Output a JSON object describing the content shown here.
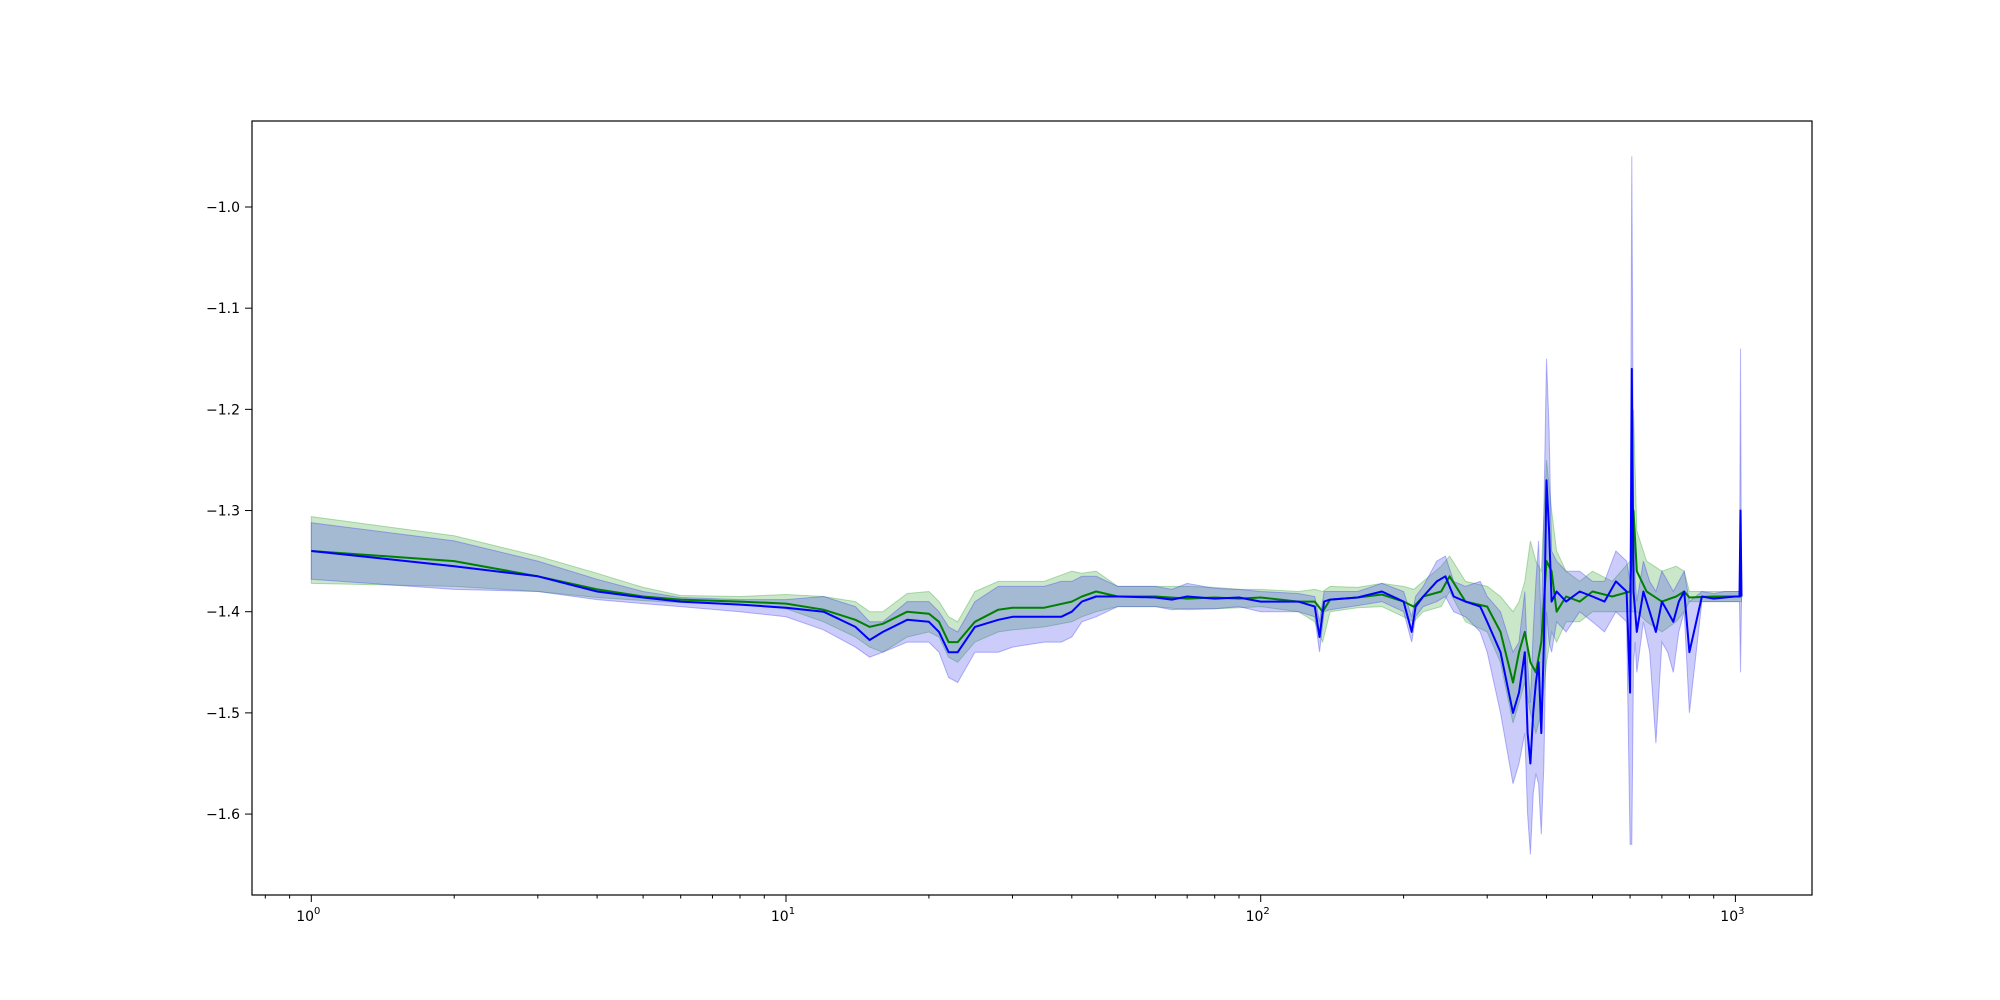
{
  "chart_data": {
    "type": "line",
    "xscale": "log",
    "xlim": [
      0.75,
      1450
    ],
    "ylim": [
      -1.68,
      -0.915
    ],
    "grid": false,
    "x_ticks": [
      {
        "value": 1,
        "label_base": "10",
        "label_exp": "0"
      },
      {
        "value": 10,
        "label_base": "10",
        "label_exp": "1"
      },
      {
        "value": 100,
        "label_base": "10",
        "label_exp": "2"
      },
      {
        "value": 1000,
        "label_base": "10",
        "label_exp": "3"
      }
    ],
    "y_ticks": [
      {
        "value": -1.0,
        "label": "−1.0"
      },
      {
        "value": -1.1,
        "label": "−1.1"
      },
      {
        "value": -1.2,
        "label": "−1.2"
      },
      {
        "value": -1.3,
        "label": "−1.3"
      },
      {
        "value": -1.4,
        "label": "−1.4"
      },
      {
        "value": -1.5,
        "label": "−1.5"
      },
      {
        "value": -1.6,
        "label": "−1.6"
      }
    ],
    "series": [
      {
        "color": "#008000",
        "band_color": "#2ca02c",
        "x": [
          1,
          2,
          3,
          4,
          5,
          6,
          8,
          10,
          12,
          14,
          15,
          16,
          18,
          20,
          21,
          22,
          23,
          25,
          28,
          30,
          35,
          40,
          42,
          45,
          50,
          60,
          70,
          80,
          90,
          100,
          120,
          130,
          135,
          140,
          160,
          180,
          200,
          210,
          220,
          240,
          250,
          270,
          300,
          320,
          340,
          350,
          360,
          370,
          380,
          390,
          400,
          410,
          420,
          440,
          470,
          500,
          550,
          600,
          610,
          620,
          650,
          700,
          750,
          780,
          800,
          900,
          1000,
          1020,
          1030
        ],
        "y": [
          -1.34,
          -1.35,
          -1.365,
          -1.378,
          -1.385,
          -1.388,
          -1.39,
          -1.392,
          -1.398,
          -1.408,
          -1.415,
          -1.412,
          -1.4,
          -1.402,
          -1.41,
          -1.43,
          -1.43,
          -1.41,
          -1.398,
          -1.396,
          -1.396,
          -1.39,
          -1.385,
          -1.38,
          -1.385,
          -1.385,
          -1.387,
          -1.386,
          -1.387,
          -1.386,
          -1.39,
          -1.39,
          -1.4,
          -1.388,
          -1.386,
          -1.383,
          -1.39,
          -1.395,
          -1.385,
          -1.38,
          -1.365,
          -1.39,
          -1.395,
          -1.42,
          -1.47,
          -1.44,
          -1.42,
          -1.45,
          -1.46,
          -1.43,
          -1.35,
          -1.36,
          -1.4,
          -1.385,
          -1.39,
          -1.38,
          -1.385,
          -1.38,
          -1.3,
          -1.36,
          -1.38,
          -1.39,
          -1.385,
          -1.38,
          -1.386,
          -1.385,
          -1.385,
          -1.385,
          -1.385
        ],
        "upper": [
          -1.306,
          -1.325,
          -1.345,
          -1.362,
          -1.376,
          -1.384,
          -1.385,
          -1.383,
          -1.385,
          -1.39,
          -1.4,
          -1.4,
          -1.382,
          -1.38,
          -1.39,
          -1.405,
          -1.41,
          -1.38,
          -1.37,
          -1.37,
          -1.37,
          -1.36,
          -1.362,
          -1.36,
          -1.375,
          -1.375,
          -1.375,
          -1.376,
          -1.378,
          -1.378,
          -1.38,
          -1.378,
          -1.38,
          -1.375,
          -1.376,
          -1.372,
          -1.375,
          -1.378,
          -1.37,
          -1.355,
          -1.345,
          -1.37,
          -1.375,
          -1.385,
          -1.4,
          -1.39,
          -1.37,
          -1.33,
          -1.35,
          -1.36,
          -1.25,
          -1.3,
          -1.34,
          -1.36,
          -1.37,
          -1.36,
          -1.37,
          -1.35,
          -1.2,
          -1.32,
          -1.35,
          -1.36,
          -1.355,
          -1.36,
          -1.38,
          -1.38,
          -1.38,
          -1.38,
          -1.38
        ],
        "lower": [
          -1.372,
          -1.375,
          -1.38,
          -1.386,
          -1.389,
          -1.391,
          -1.393,
          -1.397,
          -1.41,
          -1.425,
          -1.435,
          -1.44,
          -1.425,
          -1.42,
          -1.425,
          -1.445,
          -1.45,
          -1.43,
          -1.42,
          -1.418,
          -1.415,
          -1.41,
          -1.405,
          -1.4,
          -1.395,
          -1.395,
          -1.398,
          -1.397,
          -1.396,
          -1.395,
          -1.4,
          -1.41,
          -1.43,
          -1.4,
          -1.396,
          -1.395,
          -1.405,
          -1.41,
          -1.4,
          -1.395,
          -1.38,
          -1.41,
          -1.42,
          -1.45,
          -1.51,
          -1.49,
          -1.47,
          -1.5,
          -1.52,
          -1.5,
          -1.45,
          -1.42,
          -1.43,
          -1.41,
          -1.41,
          -1.4,
          -1.4,
          -1.4,
          -1.4,
          -1.4,
          -1.41,
          -1.42,
          -1.41,
          -1.4,
          -1.39,
          -1.39,
          -1.39,
          -1.39,
          -1.39
        ]
      },
      {
        "color": "#0000ff",
        "band_color": "#3333ee",
        "x": [
          1,
          2,
          3,
          4,
          5,
          6,
          8,
          10,
          12,
          14,
          15,
          16,
          18,
          20,
          21,
          22,
          23,
          25,
          28,
          30,
          35,
          38,
          40,
          42,
          45,
          50,
          60,
          65,
          70,
          80,
          90,
          100,
          120,
          130,
          133,
          136,
          140,
          160,
          180,
          200,
          208,
          212,
          220,
          235,
          245,
          255,
          270,
          290,
          300,
          320,
          340,
          350,
          360,
          365,
          370,
          375,
          380,
          385,
          390,
          395,
          400,
          405,
          410,
          420,
          440,
          470,
          500,
          530,
          560,
          590,
          600,
          605,
          610,
          615,
          620,
          640,
          660,
          680,
          700,
          720,
          740,
          760,
          780,
          800,
          850,
          900,
          950,
          1000,
          1020,
          1025,
          1030
        ],
        "y": [
          -1.34,
          -1.355,
          -1.365,
          -1.38,
          -1.386,
          -1.39,
          -1.393,
          -1.396,
          -1.4,
          -1.415,
          -1.428,
          -1.42,
          -1.408,
          -1.41,
          -1.42,
          -1.44,
          -1.44,
          -1.415,
          -1.408,
          -1.405,
          -1.405,
          -1.405,
          -1.4,
          -1.39,
          -1.385,
          -1.385,
          -1.386,
          -1.388,
          -1.385,
          -1.387,
          -1.386,
          -1.39,
          -1.39,
          -1.395,
          -1.425,
          -1.39,
          -1.388,
          -1.386,
          -1.38,
          -1.39,
          -1.42,
          -1.395,
          -1.385,
          -1.37,
          -1.365,
          -1.385,
          -1.39,
          -1.395,
          -1.41,
          -1.44,
          -1.5,
          -1.48,
          -1.44,
          -1.52,
          -1.55,
          -1.5,
          -1.47,
          -1.45,
          -1.52,
          -1.43,
          -1.27,
          -1.32,
          -1.39,
          -1.38,
          -1.39,
          -1.38,
          -1.385,
          -1.39,
          -1.37,
          -1.38,
          -1.48,
          -1.16,
          -1.38,
          -1.4,
          -1.42,
          -1.38,
          -1.4,
          -1.42,
          -1.39,
          -1.4,
          -1.41,
          -1.39,
          -1.38,
          -1.44,
          -1.385,
          -1.387,
          -1.386,
          -1.385,
          -1.385,
          -1.3,
          -1.385
        ],
        "upper": [
          -1.312,
          -1.33,
          -1.35,
          -1.368,
          -1.38,
          -1.386,
          -1.388,
          -1.388,
          -1.385,
          -1.395,
          -1.41,
          -1.41,
          -1.39,
          -1.39,
          -1.4,
          -1.415,
          -1.42,
          -1.39,
          -1.375,
          -1.375,
          -1.375,
          -1.37,
          -1.37,
          -1.365,
          -1.365,
          -1.375,
          -1.375,
          -1.378,
          -1.372,
          -1.377,
          -1.378,
          -1.38,
          -1.382,
          -1.385,
          -1.41,
          -1.38,
          -1.38,
          -1.38,
          -1.372,
          -1.38,
          -1.405,
          -1.385,
          -1.375,
          -1.35,
          -1.345,
          -1.37,
          -1.375,
          -1.37,
          -1.385,
          -1.4,
          -1.44,
          -1.43,
          -1.38,
          -1.45,
          -1.49,
          -1.42,
          -1.37,
          -1.33,
          -1.42,
          -1.3,
          -1.15,
          -1.22,
          -1.34,
          -1.35,
          -1.36,
          -1.36,
          -1.37,
          -1.37,
          -1.34,
          -1.35,
          -1.37,
          -0.95,
          -1.3,
          -1.37,
          -1.39,
          -1.35,
          -1.37,
          -1.38,
          -1.36,
          -1.37,
          -1.38,
          -1.37,
          -1.36,
          -1.39,
          -1.38,
          -1.382,
          -1.38,
          -1.38,
          -1.38,
          -1.14,
          -1.38
        ],
        "lower": [
          -1.368,
          -1.378,
          -1.38,
          -1.388,
          -1.392,
          -1.395,
          -1.4,
          -1.405,
          -1.418,
          -1.435,
          -1.445,
          -1.44,
          -1.43,
          -1.43,
          -1.44,
          -1.465,
          -1.47,
          -1.44,
          -1.44,
          -1.435,
          -1.43,
          -1.43,
          -1.425,
          -1.41,
          -1.405,
          -1.395,
          -1.395,
          -1.398,
          -1.397,
          -1.397,
          -1.395,
          -1.4,
          -1.4,
          -1.405,
          -1.44,
          -1.4,
          -1.398,
          -1.394,
          -1.39,
          -1.4,
          -1.43,
          -1.405,
          -1.395,
          -1.39,
          -1.385,
          -1.4,
          -1.405,
          -1.42,
          -1.44,
          -1.5,
          -1.57,
          -1.55,
          -1.52,
          -1.6,
          -1.64,
          -1.58,
          -1.56,
          -1.57,
          -1.62,
          -1.55,
          -1.4,
          -1.43,
          -1.44,
          -1.41,
          -1.42,
          -1.4,
          -1.41,
          -1.42,
          -1.4,
          -1.41,
          -1.63,
          -1.63,
          -1.45,
          -1.43,
          -1.46,
          -1.41,
          -1.44,
          -1.53,
          -1.43,
          -1.44,
          -1.46,
          -1.42,
          -1.4,
          -1.5,
          -1.39,
          -1.39,
          -1.39,
          -1.39,
          -1.39,
          -1.46,
          -1.39
        ]
      }
    ]
  }
}
